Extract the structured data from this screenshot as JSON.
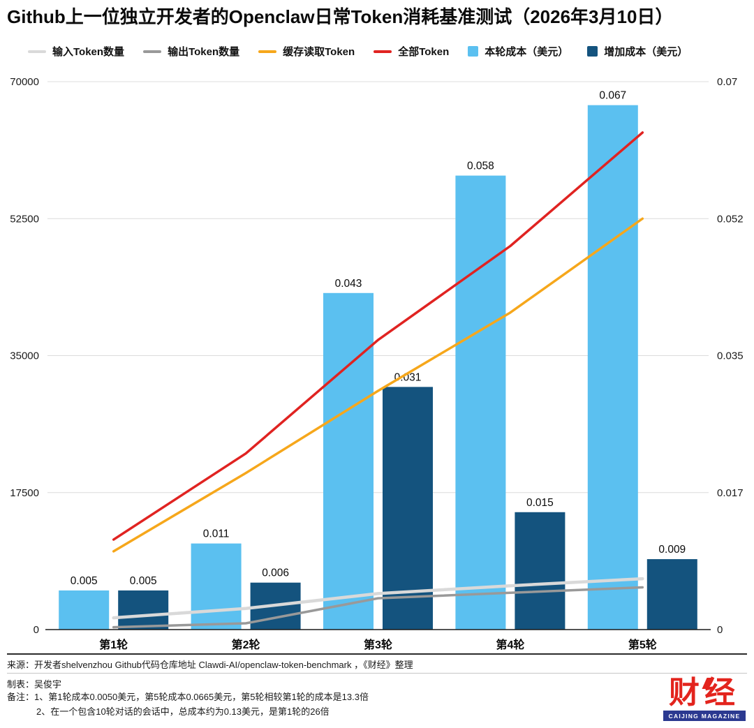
{
  "chart_data": {
    "type": "combo-bar-line",
    "title": "Github上一位独立开发者的Openclaw日常Token消耗基准测试（2026年3月10日）",
    "categories": [
      "第1轮",
      "第2轮",
      "第3轮",
      "第4轮",
      "第5轮"
    ],
    "left_axis": {
      "max": 70000,
      "tick_labels": [
        "0",
        "17500",
        "35000",
        "52500",
        "70000"
      ]
    },
    "right_axis": {
      "max": 0.07,
      "tick_labels": [
        "0",
        "0.017",
        "0.035",
        "0.052",
        "0.07"
      ]
    },
    "grid": true,
    "legend_position": "top",
    "bar_series": [
      {
        "name": "本轮成本（美元）",
        "axis": "right",
        "color": "#5BC0F0",
        "values": [
          0.005,
          0.011,
          0.043,
          0.058,
          0.067
        ],
        "labels": [
          "0.005",
          "0.011",
          "0.043",
          "0.058",
          "0.067"
        ]
      },
      {
        "name": "增加成本（美元）",
        "axis": "right",
        "color": "#14537E",
        "values": [
          0.005,
          0.006,
          0.031,
          0.015,
          0.009
        ],
        "labels": [
          "0.005",
          "0.006",
          "0.031",
          "0.015",
          "0.009"
        ]
      }
    ],
    "line_series": [
      {
        "name": "输入Token数量",
        "axis": "left",
        "color": "#D9D9D9",
        "values": [
          1500,
          2700,
          4600,
          5600,
          6500
        ]
      },
      {
        "name": "输出Token数量",
        "axis": "left",
        "color": "#999999",
        "values": [
          300,
          800,
          4000,
          4700,
          5400
        ]
      },
      {
        "name": "缓存读取Token",
        "axis": "left",
        "color": "#F6A71B",
        "values": [
          10000,
          20000,
          30500,
          40500,
          52500
        ]
      },
      {
        "name": "全部Token",
        "axis": "left",
        "color": "#E02321",
        "values": [
          11500,
          22500,
          37000,
          49000,
          63500
        ]
      }
    ]
  },
  "legend": {
    "items": [
      {
        "label": "输入Token数量",
        "type": "line",
        "color": "#D9D9D9"
      },
      {
        "label": "输出Token数量",
        "type": "line",
        "color": "#999999"
      },
      {
        "label": "缓存读取Token",
        "type": "line",
        "color": "#F6A71B"
      },
      {
        "label": "全部Token",
        "type": "line",
        "color": "#E02321"
      },
      {
        "label": "本轮成本（美元）",
        "type": "bar",
        "color": "#5BC0F0"
      },
      {
        "label": "增加成本（美元）",
        "type": "bar",
        "color": "#14537E"
      }
    ]
  },
  "footer": {
    "source": "来源：开发者shelvenzhou  Github代码仓库地址 Clawdi-AI/openclaw-token-benchmark ，《财经》整理",
    "maker": "制表：吴俊宇",
    "note1": "备注：1、第1轮成本0.0050美元，第5轮成本0.0665美元，第5轮相较第1轮的成本是13.3倍",
    "note2": "2、在一个包含10轮对话的会话中，总成本约为0.13美元，是第1轮的26倍"
  },
  "logo": {
    "cn": "财经",
    "en": "CAIJING MAGAZINE"
  }
}
